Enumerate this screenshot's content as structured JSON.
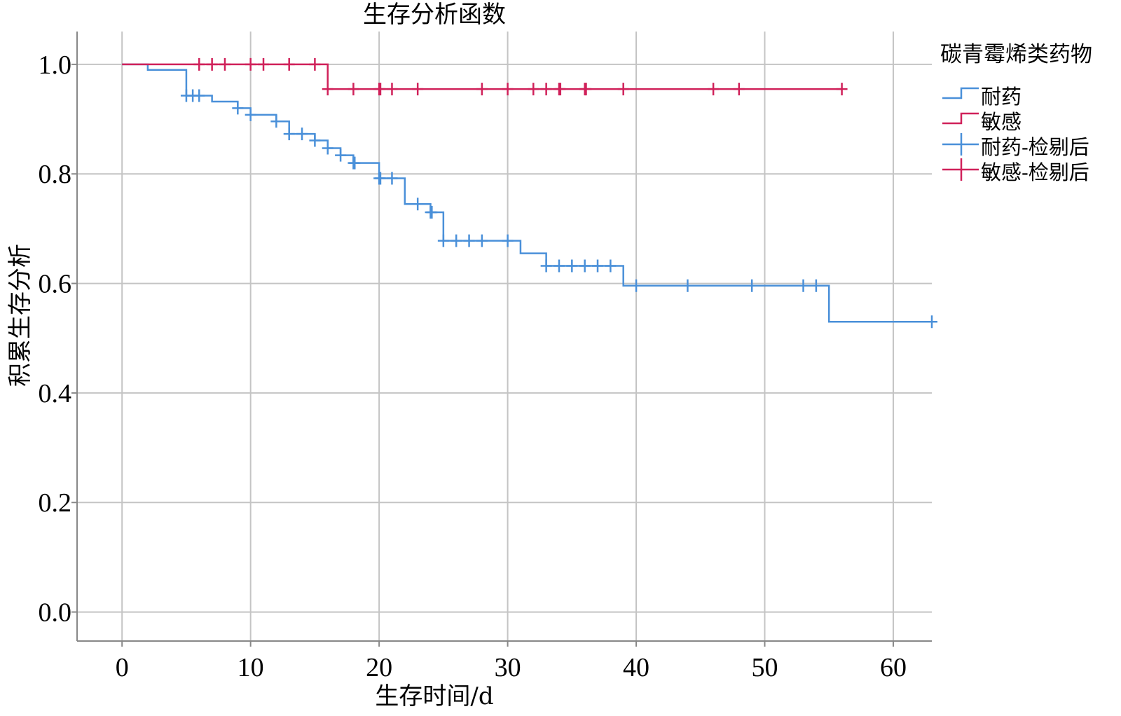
{
  "chart_data": {
    "type": "line",
    "subtype": "kaplan-meier-step",
    "title": "生存分析函数",
    "xlabel": "生存时间/d",
    "ylabel": "积累生存分析",
    "xlim": [
      -3.5,
      63
    ],
    "ylim": [
      -0.053,
      1.06
    ],
    "xticks": [
      0,
      10,
      20,
      30,
      40,
      50,
      60
    ],
    "xtick_labels": [
      "0",
      "10",
      "20",
      "30",
      "40",
      "50",
      "60"
    ],
    "yticks": [
      0.0,
      0.2,
      0.4,
      0.6,
      0.8,
      1.0
    ],
    "ytick_labels": [
      "0.0",
      "0.2",
      "0.4",
      "0.6",
      "0.8",
      "1.0"
    ],
    "grid": true,
    "legend": {
      "title": "碳青霉烯类药物",
      "placement": "right",
      "entries": [
        {
          "label": "耐药",
          "kind": "line",
          "color": "#4a90d9"
        },
        {
          "label": "敏感",
          "kind": "line",
          "color": "#d0215a"
        },
        {
          "label": "耐药-检剔后",
          "kind": "censor",
          "color": "#4a90d9"
        },
        {
          "label": "敏感-检剔后",
          "kind": "censor",
          "color": "#d0215a"
        }
      ]
    },
    "series": [
      {
        "name": "耐药",
        "color": "#4a90d9",
        "steps": [
          [
            0,
            1.0
          ],
          [
            2,
            0.99
          ],
          [
            5,
            0.943
          ],
          [
            7,
            0.932
          ],
          [
            9,
            0.92
          ],
          [
            10,
            0.908
          ],
          [
            12,
            0.896
          ],
          [
            13,
            0.873
          ],
          [
            15,
            0.861
          ],
          [
            16,
            0.847
          ],
          [
            17,
            0.834
          ],
          [
            18,
            0.82
          ],
          [
            20,
            0.792
          ],
          [
            22,
            0.745
          ],
          [
            24,
            0.73
          ],
          [
            25,
            0.678
          ],
          [
            31,
            0.655
          ],
          [
            33,
            0.632
          ],
          [
            39,
            0.596
          ],
          [
            55,
            0.53
          ],
          [
            63,
            0.53
          ]
        ],
        "censored": [
          [
            5,
            0.943
          ],
          [
            5.5,
            0.943
          ],
          [
            6,
            0.943
          ],
          [
            9,
            0.92
          ],
          [
            10,
            0.908
          ],
          [
            12,
            0.896
          ],
          [
            13,
            0.873
          ],
          [
            14,
            0.873
          ],
          [
            15,
            0.861
          ],
          [
            16,
            0.847
          ],
          [
            17,
            0.834
          ],
          [
            18,
            0.82
          ],
          [
            18.1,
            0.82
          ],
          [
            20,
            0.792
          ],
          [
            20.1,
            0.792
          ],
          [
            21,
            0.792
          ],
          [
            23,
            0.745
          ],
          [
            24,
            0.73
          ],
          [
            24.1,
            0.73
          ],
          [
            25,
            0.678
          ],
          [
            26,
            0.678
          ],
          [
            27,
            0.678
          ],
          [
            28,
            0.678
          ],
          [
            30,
            0.678
          ],
          [
            33,
            0.632
          ],
          [
            34,
            0.632
          ],
          [
            35,
            0.632
          ],
          [
            36,
            0.632
          ],
          [
            37,
            0.632
          ],
          [
            38,
            0.632
          ],
          [
            40,
            0.596
          ],
          [
            44,
            0.596
          ],
          [
            49,
            0.596
          ],
          [
            53,
            0.596
          ],
          [
            54,
            0.596
          ],
          [
            63,
            0.53
          ]
        ]
      },
      {
        "name": "敏感",
        "color": "#d0215a",
        "steps": [
          [
            0,
            1.0
          ],
          [
            16,
            0.955
          ],
          [
            56,
            0.955
          ]
        ],
        "censored": [
          [
            6,
            1.0
          ],
          [
            7,
            1.0
          ],
          [
            8,
            1.0
          ],
          [
            10,
            1.0
          ],
          [
            11,
            1.0
          ],
          [
            13,
            1.0
          ],
          [
            15,
            1.0
          ],
          [
            16,
            0.955
          ],
          [
            18,
            0.955
          ],
          [
            20,
            0.955
          ],
          [
            20.1,
            0.955
          ],
          [
            21,
            0.955
          ],
          [
            23,
            0.955
          ],
          [
            28,
            0.955
          ],
          [
            30,
            0.955
          ],
          [
            32,
            0.955
          ],
          [
            33,
            0.955
          ],
          [
            34,
            0.955
          ],
          [
            34.1,
            0.955
          ],
          [
            36,
            0.955
          ],
          [
            36.1,
            0.955
          ],
          [
            39,
            0.955
          ],
          [
            46,
            0.955
          ],
          [
            48,
            0.955
          ],
          [
            56,
            0.955
          ]
        ]
      }
    ]
  }
}
